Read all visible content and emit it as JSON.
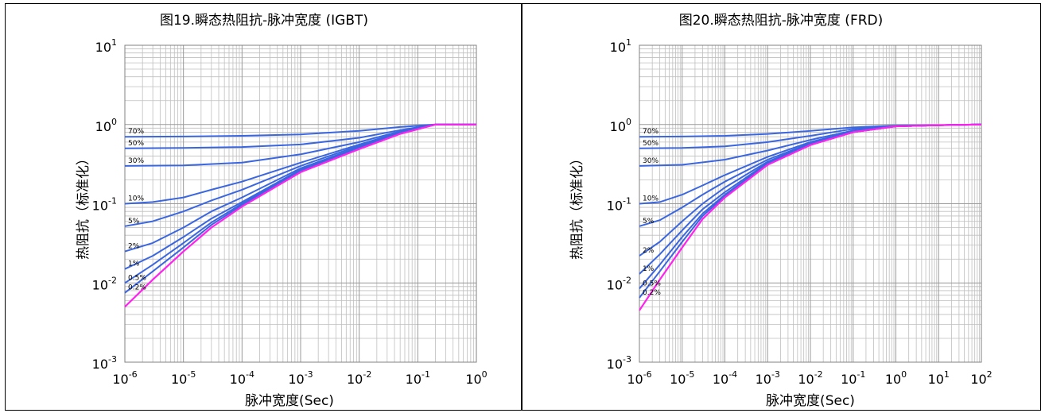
{
  "colors": {
    "series": "#3a66e0",
    "single_pulse": "#ff22ee",
    "grid": "#bfbfbf",
    "border": "#808080"
  },
  "chart_data": [
    {
      "type": "line",
      "title": "图19.瞬态热阻抗-脉冲宽度 (IGBT)",
      "xlabel": "脉冲宽度(Sec)",
      "ylabel": "热阻抗（标准化）",
      "xscale": "log",
      "yscale": "log",
      "xlim": [
        1e-06,
        1
      ],
      "ylim": [
        0.001,
        10
      ],
      "x_ticks": [
        {
          "base": "10",
          "exp": "-6"
        },
        {
          "base": "10",
          "exp": "-5"
        },
        {
          "base": "10",
          "exp": "-4"
        },
        {
          "base": "10",
          "exp": "-3"
        },
        {
          "base": "10",
          "exp": "-2"
        },
        {
          "base": "10",
          "exp": "-1"
        },
        {
          "base": "10",
          "exp": "0"
        }
      ],
      "y_ticks": [
        {
          "base": "10",
          "exp": "-3"
        },
        {
          "base": "10",
          "exp": "-2"
        },
        {
          "base": "10",
          "exp": "-1"
        },
        {
          "base": "10",
          "exp": "0"
        },
        {
          "base": "10",
          "exp": "1"
        }
      ],
      "grid": true,
      "series": [
        {
          "name": "70%",
          "kind": "duty",
          "points": [
            [
              1e-06,
              0.7
            ],
            [
              1e-05,
              0.705
            ],
            [
              0.0001,
              0.72
            ],
            [
              0.001,
              0.75
            ],
            [
              0.01,
              0.83
            ],
            [
              0.05,
              0.93
            ],
            [
              0.2,
              1.0
            ],
            [
              1,
              1.0
            ]
          ]
        },
        {
          "name": "50%",
          "kind": "duty",
          "points": [
            [
              1e-06,
              0.5
            ],
            [
              1e-05,
              0.505
            ],
            [
              0.0001,
              0.52
            ],
            [
              0.001,
              0.56
            ],
            [
              0.01,
              0.68
            ],
            [
              0.05,
              0.85
            ],
            [
              0.2,
              1.0
            ],
            [
              1,
              1.0
            ]
          ]
        },
        {
          "name": "30%",
          "kind": "duty",
          "points": [
            [
              1e-06,
              0.3
            ],
            [
              1e-05,
              0.305
            ],
            [
              0.0001,
              0.33
            ],
            [
              0.0003,
              0.37
            ],
            [
              0.001,
              0.42
            ],
            [
              0.01,
              0.6
            ],
            [
              0.05,
              0.82
            ],
            [
              0.2,
              1.0
            ],
            [
              1,
              1.0
            ]
          ]
        },
        {
          "name": "10%",
          "kind": "duty",
          "points": [
            [
              1e-06,
              0.1
            ],
            [
              3e-06,
              0.105
            ],
            [
              1e-05,
              0.12
            ],
            [
              3e-05,
              0.15
            ],
            [
              0.0001,
              0.19
            ],
            [
              0.001,
              0.33
            ],
            [
              0.01,
              0.56
            ],
            [
              0.05,
              0.8
            ],
            [
              0.2,
              1.0
            ],
            [
              1,
              1.0
            ]
          ]
        },
        {
          "name": "5%",
          "kind": "duty",
          "points": [
            [
              1e-06,
              0.052
            ],
            [
              3e-06,
              0.06
            ],
            [
              1e-05,
              0.08
            ],
            [
              3e-05,
              0.11
            ],
            [
              0.0001,
              0.15
            ],
            [
              0.001,
              0.3
            ],
            [
              0.01,
              0.54
            ],
            [
              0.05,
              0.79
            ],
            [
              0.2,
              1.0
            ],
            [
              1,
              1.0
            ]
          ]
        },
        {
          "name": "2%",
          "kind": "duty",
          "points": [
            [
              1e-06,
              0.025
            ],
            [
              3e-06,
              0.032
            ],
            [
              1e-05,
              0.05
            ],
            [
              3e-05,
              0.08
            ],
            [
              0.0001,
              0.12
            ],
            [
              0.001,
              0.28
            ],
            [
              0.01,
              0.52
            ],
            [
              0.05,
              0.78
            ],
            [
              0.2,
              1.0
            ],
            [
              1,
              1.0
            ]
          ]
        },
        {
          "name": "1%",
          "kind": "duty",
          "points": [
            [
              1e-06,
              0.015
            ],
            [
              3e-06,
              0.022
            ],
            [
              1e-05,
              0.038
            ],
            [
              3e-05,
              0.065
            ],
            [
              0.0001,
              0.105
            ],
            [
              0.001,
              0.27
            ],
            [
              0.01,
              0.51
            ],
            [
              0.05,
              0.78
            ],
            [
              0.2,
              1.0
            ],
            [
              1,
              1.0
            ]
          ]
        },
        {
          "name": "0.5%",
          "kind": "duty",
          "points": [
            [
              1e-06,
              0.01
            ],
            [
              3e-06,
              0.017
            ],
            [
              1e-05,
              0.032
            ],
            [
              3e-05,
              0.058
            ],
            [
              0.0001,
              0.1
            ],
            [
              0.001,
              0.26
            ],
            [
              0.01,
              0.5
            ],
            [
              0.05,
              0.77
            ],
            [
              0.2,
              1.0
            ],
            [
              1,
              1.0
            ]
          ]
        },
        {
          "name": "0.2%",
          "kind": "duty",
          "points": [
            [
              1e-06,
              0.0075
            ],
            [
              3e-06,
              0.014
            ],
            [
              1e-05,
              0.028
            ],
            [
              3e-05,
              0.054
            ],
            [
              0.0001,
              0.096
            ],
            [
              0.001,
              0.255
            ],
            [
              0.01,
              0.5
            ],
            [
              0.05,
              0.77
            ],
            [
              0.2,
              1.0
            ],
            [
              1,
              1.0
            ]
          ]
        },
        {
          "kind": "single",
          "points": [
            [
              1e-06,
              0.005
            ],
            [
              3e-06,
              0.011
            ],
            [
              1e-05,
              0.025
            ],
            [
              3e-05,
              0.05
            ],
            [
              0.0001,
              0.092
            ],
            [
              0.001,
              0.25
            ],
            [
              0.01,
              0.49
            ],
            [
              0.05,
              0.76
            ],
            [
              0.2,
              1.0
            ],
            [
              1,
              1.0
            ]
          ]
        }
      ]
    },
    {
      "type": "line",
      "title": "图20.瞬态热阻抗-脉冲宽度 (FRD)",
      "xlabel": "脉冲宽度(Sec)",
      "ylabel": "热阻抗（标准化）",
      "xscale": "log",
      "yscale": "log",
      "xlim": [
        1e-06,
        100
      ],
      "ylim": [
        0.001,
        10
      ],
      "x_ticks": [
        {
          "base": "10",
          "exp": "-6"
        },
        {
          "base": "10",
          "exp": "-5"
        },
        {
          "base": "10",
          "exp": "-4"
        },
        {
          "base": "10",
          "exp": "-3"
        },
        {
          "base": "10",
          "exp": "-2"
        },
        {
          "base": "10",
          "exp": "-1"
        },
        {
          "base": "10",
          "exp": "0"
        },
        {
          "base": "10",
          "exp": "1"
        },
        {
          "base": "10",
          "exp": "2"
        }
      ],
      "y_ticks": [
        {
          "base": "10",
          "exp": "-3"
        },
        {
          "base": "10",
          "exp": "-2"
        },
        {
          "base": "10",
          "exp": "-1"
        },
        {
          "base": "10",
          "exp": "0"
        },
        {
          "base": "10",
          "exp": "1"
        }
      ],
      "grid": true,
      "series": [
        {
          "name": "70%",
          "kind": "duty",
          "points": [
            [
              1e-06,
              0.7
            ],
            [
              1e-05,
              0.705
            ],
            [
              0.0001,
              0.72
            ],
            [
              0.001,
              0.76
            ],
            [
              0.01,
              0.83
            ],
            [
              0.1,
              0.92
            ],
            [
              1,
              0.97
            ],
            [
              10,
              0.98
            ],
            [
              100,
              1.0
            ]
          ]
        },
        {
          "name": "50%",
          "kind": "duty",
          "points": [
            [
              1e-06,
              0.5
            ],
            [
              1e-05,
              0.505
            ],
            [
              0.0001,
              0.53
            ],
            [
              0.001,
              0.6
            ],
            [
              0.01,
              0.72
            ],
            [
              0.1,
              0.88
            ],
            [
              1,
              0.96
            ],
            [
              10,
              0.98
            ],
            [
              100,
              1.0
            ]
          ]
        },
        {
          "name": "30%",
          "kind": "duty",
          "points": [
            [
              1e-06,
              0.3
            ],
            [
              1e-05,
              0.31
            ],
            [
              0.0001,
              0.36
            ],
            [
              0.001,
              0.47
            ],
            [
              0.01,
              0.64
            ],
            [
              0.1,
              0.84
            ],
            [
              1,
              0.95
            ],
            [
              10,
              0.98
            ],
            [
              100,
              1.0
            ]
          ]
        },
        {
          "name": "10%",
          "kind": "duty",
          "points": [
            [
              1e-06,
              0.1
            ],
            [
              3e-06,
              0.105
            ],
            [
              1e-05,
              0.13
            ],
            [
              3e-05,
              0.17
            ],
            [
              0.0001,
              0.23
            ],
            [
              0.001,
              0.39
            ],
            [
              0.01,
              0.6
            ],
            [
              0.1,
              0.82
            ],
            [
              1,
              0.95
            ],
            [
              10,
              0.98
            ],
            [
              100,
              1.0
            ]
          ]
        },
        {
          "name": "5%",
          "kind": "duty",
          "points": [
            [
              1e-06,
              0.052
            ],
            [
              3e-06,
              0.062
            ],
            [
              1e-05,
              0.09
            ],
            [
              3e-05,
              0.13
            ],
            [
              0.0001,
              0.19
            ],
            [
              0.001,
              0.36
            ],
            [
              0.01,
              0.58
            ],
            [
              0.1,
              0.81
            ],
            [
              1,
              0.95
            ],
            [
              10,
              0.98
            ],
            [
              100,
              1.0
            ]
          ]
        },
        {
          "name": "2%",
          "kind": "duty",
          "points": [
            [
              1e-06,
              0.022
            ],
            [
              3e-06,
              0.033
            ],
            [
              1e-05,
              0.06
            ],
            [
              3e-05,
              0.1
            ],
            [
              0.0001,
              0.16
            ],
            [
              0.001,
              0.34
            ],
            [
              0.01,
              0.57
            ],
            [
              0.1,
              0.8
            ],
            [
              1,
              0.95
            ],
            [
              10,
              0.98
            ],
            [
              100,
              1.0
            ]
          ]
        },
        {
          "name": "1%",
          "kind": "duty",
          "points": [
            [
              1e-06,
              0.013
            ],
            [
              3e-06,
              0.023
            ],
            [
              1e-05,
              0.046
            ],
            [
              3e-05,
              0.085
            ],
            [
              0.0001,
              0.14
            ],
            [
              0.001,
              0.33
            ],
            [
              0.01,
              0.56
            ],
            [
              0.1,
              0.8
            ],
            [
              1,
              0.95
            ],
            [
              10,
              0.98
            ],
            [
              100,
              1.0
            ]
          ]
        },
        {
          "name": "0.5%",
          "kind": "duty",
          "points": [
            [
              1e-06,
              0.0085
            ],
            [
              3e-06,
              0.017
            ],
            [
              1e-05,
              0.038
            ],
            [
              3e-05,
              0.075
            ],
            [
              0.0001,
              0.13
            ],
            [
              0.001,
              0.32
            ],
            [
              0.01,
              0.56
            ],
            [
              0.1,
              0.8
            ],
            [
              1,
              0.95
            ],
            [
              10,
              0.98
            ],
            [
              100,
              1.0
            ]
          ]
        },
        {
          "name": "0.2%",
          "kind": "duty",
          "points": [
            [
              1e-06,
              0.0065
            ],
            [
              3e-06,
              0.014
            ],
            [
              1e-05,
              0.033
            ],
            [
              3e-05,
              0.07
            ],
            [
              0.0001,
              0.125
            ],
            [
              0.001,
              0.315
            ],
            [
              0.01,
              0.55
            ],
            [
              0.1,
              0.8
            ],
            [
              1,
              0.95
            ],
            [
              10,
              0.98
            ],
            [
              100,
              1.0
            ]
          ]
        },
        {
          "kind": "single",
          "points": [
            [
              1e-06,
              0.0045
            ],
            [
              3e-06,
              0.011
            ],
            [
              1e-05,
              0.028
            ],
            [
              3e-05,
              0.064
            ],
            [
              0.0001,
              0.12
            ],
            [
              0.001,
              0.31
            ],
            [
              0.01,
              0.55
            ],
            [
              0.1,
              0.8
            ],
            [
              1,
              0.95
            ],
            [
              10,
              0.98
            ],
            [
              100,
              1.0
            ]
          ]
        }
      ]
    }
  ]
}
